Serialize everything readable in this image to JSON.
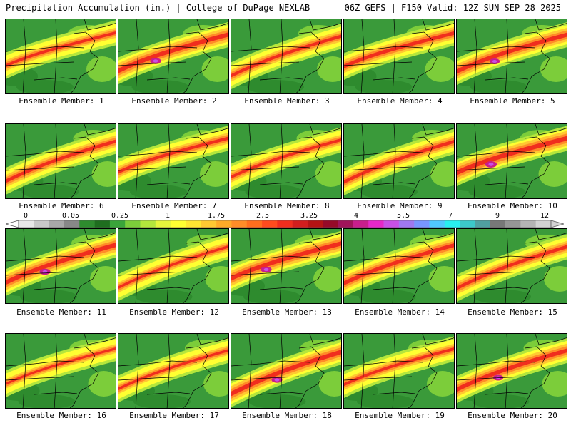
{
  "header": {
    "title_left": "Precipitation Accumulation (in.) | College of DuPage NEXLAB",
    "title_right": "06Z GEFS | F150 Valid: 12Z SUN SEP 28 2025"
  },
  "members": [
    {
      "label": "Ensemble Member: 1",
      "intensity": 0.55
    },
    {
      "label": "Ensemble Member: 2",
      "intensity": 0.85
    },
    {
      "label": "Ensemble Member: 3",
      "intensity": 0.6
    },
    {
      "label": "Ensemble Member: 4",
      "intensity": 0.7
    },
    {
      "label": "Ensemble Member: 5",
      "intensity": 0.8
    },
    {
      "label": "Ensemble Member: 6",
      "intensity": 0.65
    },
    {
      "label": "Ensemble Member: 7",
      "intensity": 0.6
    },
    {
      "label": "Ensemble Member: 8",
      "intensity": 0.55
    },
    {
      "label": "Ensemble Member: 9",
      "intensity": 0.65
    },
    {
      "label": "Ensemble Member: 10",
      "intensity": 0.9
    },
    {
      "label": "Ensemble Member: 11",
      "intensity": 0.85
    },
    {
      "label": "Ensemble Member: 12",
      "intensity": 0.5
    },
    {
      "label": "Ensemble Member: 13",
      "intensity": 0.85
    },
    {
      "label": "Ensemble Member: 14",
      "intensity": 0.75
    },
    {
      "label": "Ensemble Member: 15",
      "intensity": 0.65
    },
    {
      "label": "Ensemble Member: 16",
      "intensity": 0.45
    },
    {
      "label": "Ensemble Member: 17",
      "intensity": 0.5
    },
    {
      "label": "Ensemble Member: 18",
      "intensity": 0.85
    },
    {
      "label": "Ensemble Member: 19",
      "intensity": 0.55
    },
    {
      "label": "Ensemble Member: 20",
      "intensity": 0.8
    }
  ],
  "colorbar": {
    "ticks": [
      "0",
      "0.05",
      "0.25",
      "1",
      "1.75",
      "2.5",
      "3.25",
      "4",
      "5.5",
      "7",
      "9",
      "12"
    ],
    "colors": [
      "#e8e8e8",
      "#c8c8c8",
      "#a8a8a8",
      "#888888",
      "#2e8b2e",
      "#1f6e1f",
      "#3aa53a",
      "#7ccd3a",
      "#b4e63c",
      "#e6f53c",
      "#ffff32",
      "#ffe632",
      "#ffc832",
      "#ffaa28",
      "#ff8c28",
      "#ff6e1e",
      "#ff4b1e",
      "#f02d1e",
      "#d21e1e",
      "#b41414",
      "#960a28",
      "#a0145a",
      "#c81e8c",
      "#e628c8",
      "#c850e6",
      "#a078f0",
      "#7896ff",
      "#50c8ff",
      "#28f0f0",
      "#3cc8c8",
      "#50a0a0",
      "#787878",
      "#969696",
      "#b4b4b4",
      "#d2d2d2"
    ]
  }
}
